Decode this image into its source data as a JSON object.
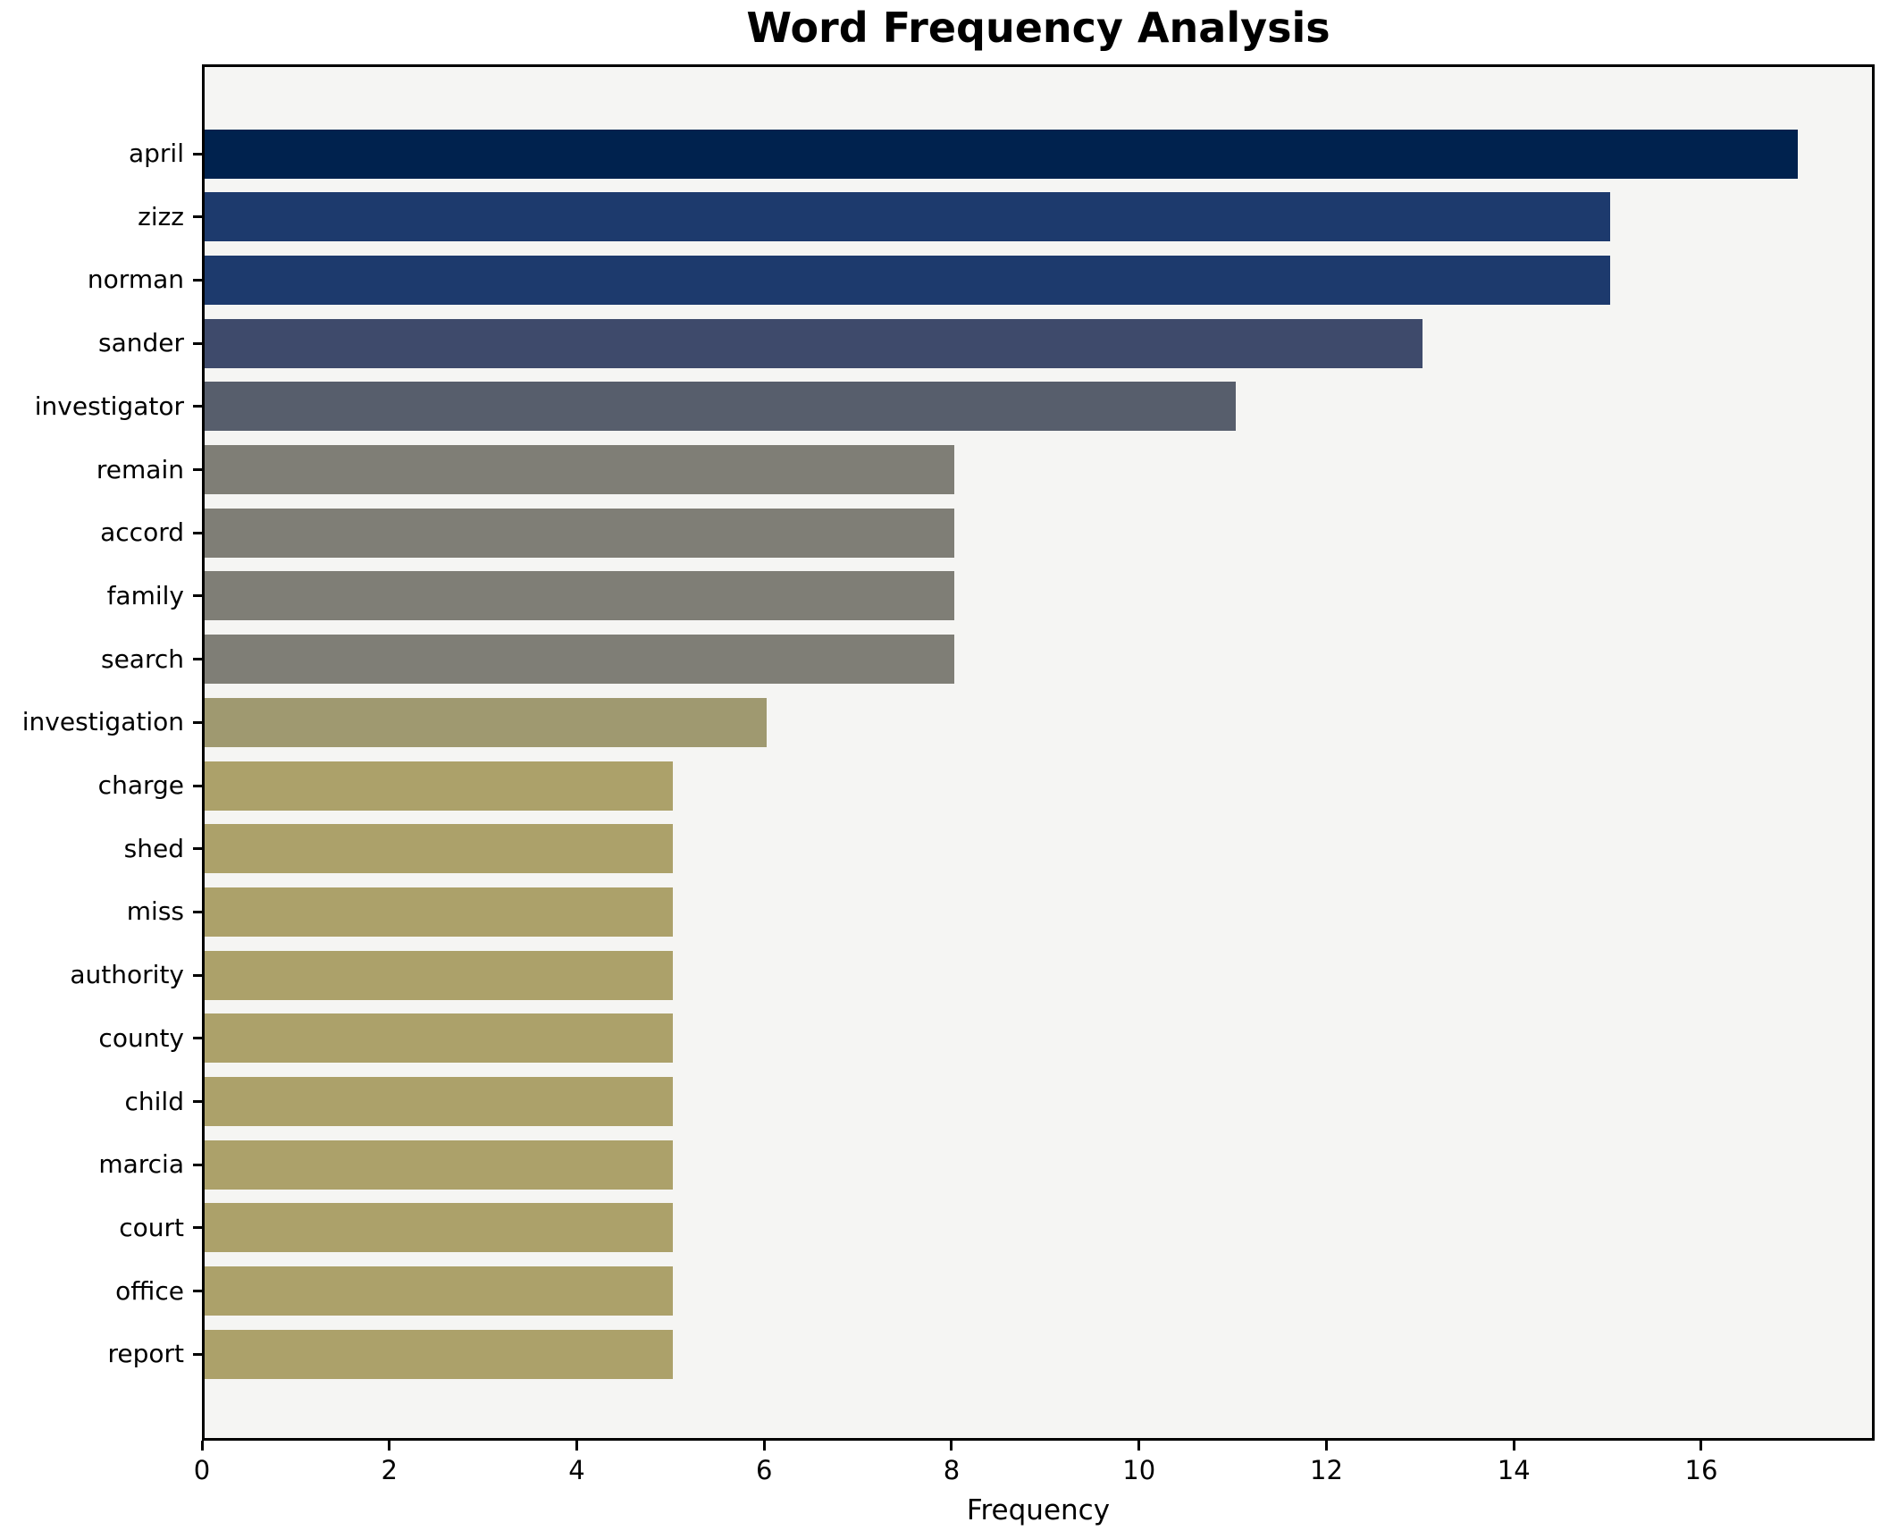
{
  "chart_data": {
    "type": "bar",
    "orientation": "horizontal",
    "title": "Word Frequency Analysis",
    "xlabel": "Frequency",
    "ylabel": "",
    "categories": [
      "april",
      "zizz",
      "norman",
      "sander",
      "investigator",
      "remain",
      "accord",
      "family",
      "search",
      "investigation",
      "charge",
      "shed",
      "miss",
      "authority",
      "county",
      "child",
      "marcia",
      "court",
      "office",
      "report"
    ],
    "values": [
      17,
      15,
      15,
      13,
      11,
      8,
      8,
      8,
      8,
      6,
      5,
      5,
      5,
      5,
      5,
      5,
      5,
      5,
      5,
      5
    ],
    "bar_colors": [
      "#00224e",
      "#1d3a6d",
      "#1d3a6d",
      "#3e4a6b",
      "#575e6c",
      "#7f7e76",
      "#7f7e76",
      "#7f7e76",
      "#7f7e76",
      "#9f9970",
      "#aca16a",
      "#aca16a",
      "#aca16a",
      "#aca16a",
      "#aca16a",
      "#aca16a",
      "#aca16a",
      "#aca16a",
      "#aca16a",
      "#aca16a"
    ],
    "x_ticks": [
      0,
      2,
      4,
      6,
      8,
      10,
      12,
      14,
      16
    ],
    "xlim": [
      0,
      17.85
    ],
    "grid": "off",
    "legend": "none",
    "plot_background": "#f5f5f3",
    "axis_color": "#000000",
    "text_color": "#000000"
  }
}
